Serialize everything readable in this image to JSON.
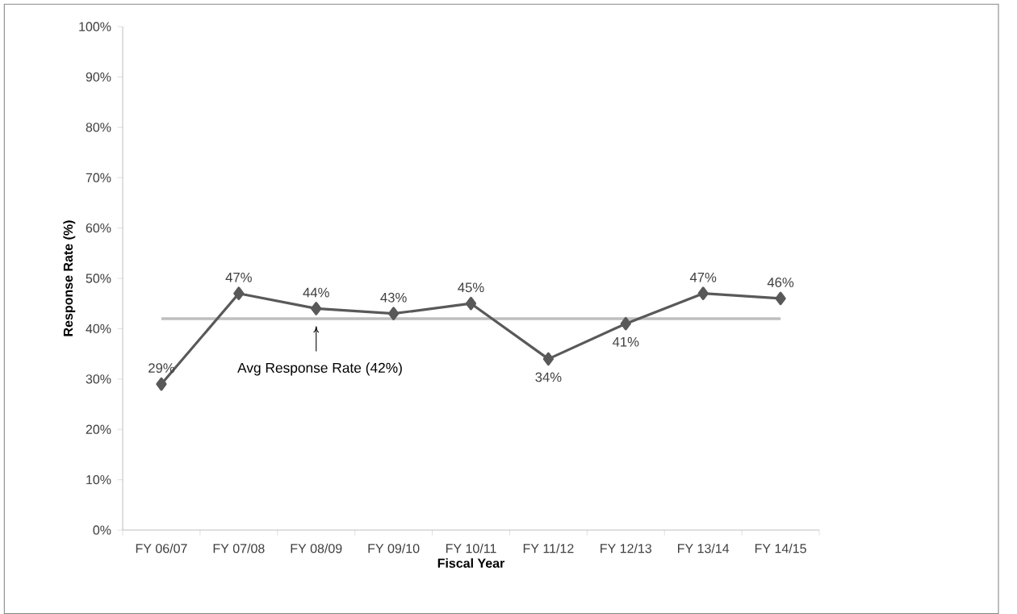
{
  "chart_data": {
    "type": "line",
    "xlabel": "Fiscal Year",
    "ylabel": "Response Rate (%)",
    "categories": [
      "FY 06/07",
      "FY 07/08",
      "FY 08/09",
      "FY 09/10",
      "FY 10/11",
      "FY 11/12",
      "FY 12/13",
      "FY 13/14",
      "FY 14/15"
    ],
    "values": [
      29,
      47,
      44,
      43,
      45,
      34,
      41,
      47,
      46
    ],
    "value_labels": [
      "29%",
      "47%",
      "44%",
      "43%",
      "45%",
      "34%",
      "41%",
      "47%",
      "46%"
    ],
    "color": "#595959",
    "marker": "diamond",
    "line_style": "solid",
    "grid": false,
    "ylim": [
      0,
      100
    ],
    "yticks": [
      {
        "value": 0,
        "label": "0%"
      },
      {
        "value": 10,
        "label": "10%"
      },
      {
        "value": 20,
        "label": "20%"
      },
      {
        "value": 30,
        "label": "30%"
      },
      {
        "value": 40,
        "label": "40%"
      },
      {
        "value": 50,
        "label": "50%"
      },
      {
        "value": 60,
        "label": "60%"
      },
      {
        "value": 70,
        "label": "70%"
      },
      {
        "value": 80,
        "label": "80%"
      },
      {
        "value": 90,
        "label": "90%"
      },
      {
        "value": 100,
        "label": "100%"
      }
    ],
    "ref_lines": [
      {
        "axis": "y",
        "value": 42,
        "label": "Avg Response Rate (42%)",
        "color": "#bfbfbf",
        "line_style": "solid"
      }
    ]
  }
}
